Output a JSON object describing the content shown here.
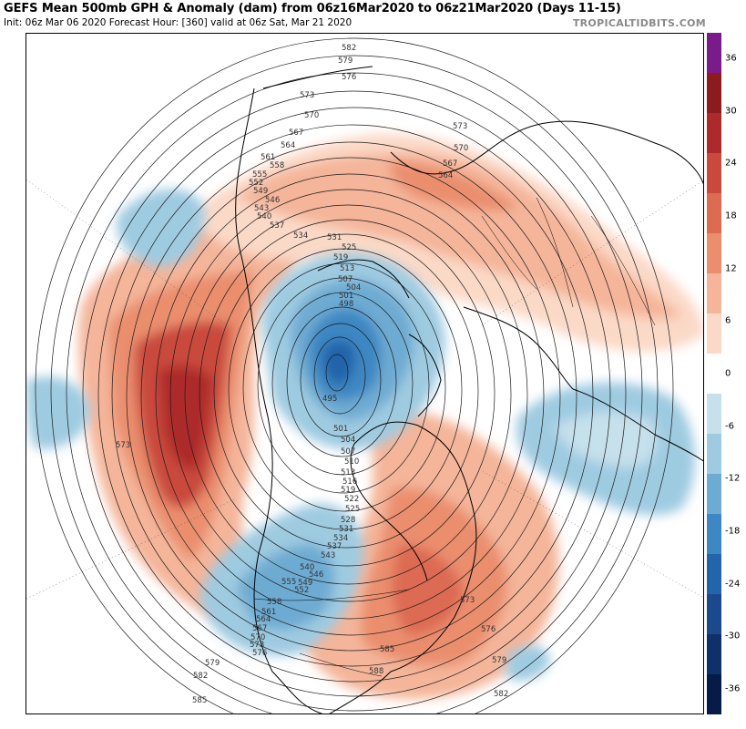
{
  "header": {
    "title": "GEFS Mean 500mb GPH & Anomaly (dam) from 06z16Mar2020 to 06z21Mar2020 (Days 11-15)",
    "subtitle": "Init: 06z Mar 06 2020   Forecast Hour: [360]   valid at 06z Sat, Mar 21 2020",
    "brand": "TROPICALTIDBITS.COM"
  },
  "colorbar": {
    "colors": [
      "#7a1b8a",
      "#8c1a1f",
      "#ad2a2c",
      "#c94a3c",
      "#dd6b52",
      "#ea8e6e",
      "#f4b59a",
      "#fbd9c7",
      "#ffffff",
      "#c6e0ec",
      "#9fcbe1",
      "#6eabd2",
      "#3d87c2",
      "#2364aa",
      "#1a4a8c",
      "#10306a",
      "#061b47"
    ],
    "labels": [
      "36",
      "30",
      "24",
      "18",
      "12",
      "6",
      "0",
      "-6",
      "-12",
      "-18",
      "-24",
      "-30",
      "-36"
    ]
  },
  "map": {
    "contour_labels": [
      "582",
      "579",
      "576",
      "573",
      "570",
      "567",
      "564",
      "561",
      "558",
      "555",
      "552",
      "549",
      "546",
      "543",
      "540",
      "537",
      "534",
      "531",
      "525",
      "519",
      "513",
      "507",
      "504",
      "501",
      "498",
      "495",
      "501",
      "504",
      "507",
      "510",
      "513",
      "516",
      "519",
      "522",
      "525",
      "528",
      "531",
      "534",
      "537",
      "540",
      "543",
      "546",
      "549",
      "552",
      "555",
      "558",
      "561",
      "564",
      "567",
      "570",
      "573",
      "576",
      "579",
      "582",
      "585",
      "588",
      "573",
      "570",
      "567",
      "564",
      "573",
      "576",
      "579",
      "582",
      "573",
      "585"
    ],
    "anomaly_regions": [
      "Ridge over NE Pacific / west coast North America",
      "Trough over Canadian Arctic",
      "Trough over western United States",
      "Ridge over eastern United States",
      "Ridge over northern Eurasia",
      "Trough over northern Atlantic / Europe"
    ]
  }
}
